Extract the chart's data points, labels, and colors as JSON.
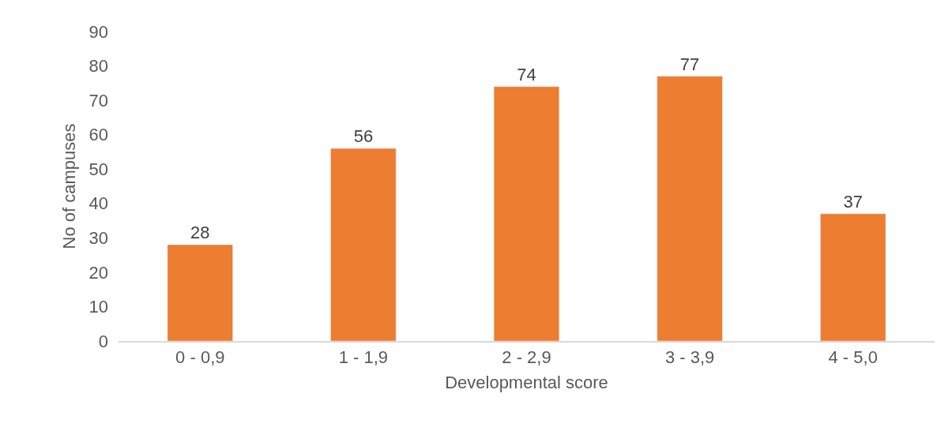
{
  "chart_data": {
    "type": "bar",
    "xlabel": "Developmental score",
    "ylabel": "No of campuses",
    "categories": [
      "0 - 0,9",
      "1 - 1,9",
      "2 - 2,9",
      "3 - 3,9",
      "4 - 5,0"
    ],
    "values": [
      28,
      56,
      74,
      77,
      37
    ],
    "color": "#ed7d31",
    "ylim": [
      0,
      90
    ],
    "yticks": [
      0,
      10,
      20,
      30,
      40,
      50,
      60,
      70,
      80,
      90
    ],
    "data_labels": true,
    "grid": false,
    "legend": false
  }
}
